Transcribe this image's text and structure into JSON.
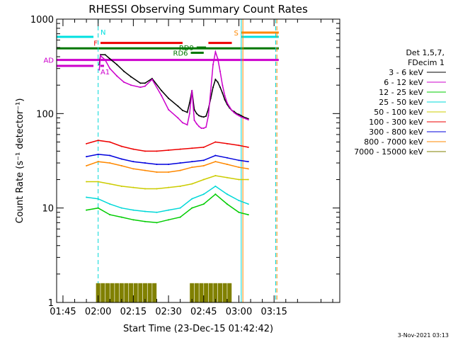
{
  "chart_data": {
    "type": "line",
    "title": "RHESSI Observing Summary Count Rates",
    "xlabel": "Start Time (23-Dec-15 01:42:42)",
    "ylabel": "Count Rate (s⁻¹ detector⁻¹)",
    "yscale": "log",
    "ylim": [
      1,
      1000
    ],
    "xlim_minutes": [
      -17.7,
      103
    ],
    "x_ticks": [
      "01:45",
      "02:00",
      "02:15",
      "02:30",
      "02:45",
      "03:00",
      "03:15"
    ],
    "x_tick_minutes": [
      -15,
      0,
      15,
      30,
      45,
      60,
      75
    ],
    "y_ticks": [
      "1",
      "10",
      "100",
      "1000"
    ],
    "y_tick_values": [
      1,
      10,
      100,
      1000
    ],
    "legend_header": [
      "Det 1,5,7,",
      "FDecim 1"
    ],
    "legend_placement": "right",
    "grid": false,
    "series": [
      {
        "name": "3 - 6 keV",
        "color": "#000000",
        "x": [
          0.5,
          1,
          3,
          5,
          8,
          11,
          14,
          18,
          20,
          23,
          27,
          30,
          34,
          36,
          38,
          39,
          40,
          41,
          42,
          43,
          44,
          45,
          46,
          47,
          48,
          49,
          50,
          51,
          52,
          53,
          54,
          55,
          56,
          57,
          58,
          59,
          60,
          61,
          62,
          63,
          64
        ],
        "y": [
          330,
          420,
          420,
          380,
          330,
          280,
          245,
          210,
          210,
          235,
          175,
          145,
          120,
          108,
          103,
          130,
          175,
          110,
          100,
          95,
          93,
          92,
          94,
          112,
          145,
          190,
          230,
          215,
          190,
          165,
          140,
          125,
          115,
          108,
          105,
          100,
          98,
          95,
          92,
          90,
          88
        ]
      },
      {
        "name": "6 - 12 keV",
        "color": "#cc00cc",
        "x": [
          0.5,
          1,
          3,
          5,
          8,
          11,
          14,
          18,
          20,
          23,
          27,
          30,
          34,
          36,
          38,
          39,
          40,
          41,
          42,
          43,
          44,
          45,
          46,
          47,
          48,
          49,
          50,
          51,
          52,
          53,
          54,
          55,
          56,
          57,
          58,
          59,
          60,
          61,
          62,
          63,
          64
        ],
        "y": [
          290,
          410,
          370,
          300,
          250,
          215,
          200,
          190,
          195,
          230,
          155,
          110,
          90,
          80,
          76,
          100,
          175,
          85,
          78,
          73,
          70,
          70,
          72,
          95,
          175,
          330,
          450,
          380,
          280,
          200,
          155,
          130,
          118,
          108,
          102,
          98,
          95,
          92,
          90,
          88,
          86
        ]
      },
      {
        "name": "12 - 25 keV",
        "color": "#00cc00",
        "x": [
          -5,
          0,
          5,
          10,
          15,
          20,
          25,
          30,
          35,
          40,
          45,
          50,
          55,
          60,
          64
        ],
        "y": [
          9.5,
          10,
          8.5,
          8,
          7.5,
          7.2,
          7.0,
          7.5,
          8.0,
          10,
          11,
          14,
          11,
          9,
          8.5
        ]
      },
      {
        "name": "25 - 50 keV",
        "color": "#00d8d8",
        "x": [
          -5,
          0,
          5,
          10,
          15,
          20,
          25,
          30,
          35,
          40,
          45,
          50,
          55,
          60,
          64
        ],
        "y": [
          13,
          12.5,
          11,
          10,
          9.5,
          9.2,
          9.0,
          9.5,
          10,
          12.5,
          14,
          17,
          14,
          12,
          11
        ]
      },
      {
        "name": "50 - 100 keV",
        "color": "#cccc00",
        "x": [
          -5,
          0,
          5,
          10,
          15,
          20,
          25,
          30,
          35,
          40,
          45,
          50,
          55,
          60,
          64
        ],
        "y": [
          19,
          19,
          18,
          17,
          16.5,
          16,
          16,
          16.5,
          17,
          18,
          20,
          22,
          21,
          20,
          20
        ]
      },
      {
        "name": "100 - 300 keV",
        "color": "#ee0000",
        "x": [
          -5,
          0,
          5,
          10,
          15,
          20,
          25,
          30,
          35,
          40,
          45,
          50,
          55,
          60,
          64
        ],
        "y": [
          48,
          52,
          50,
          45,
          42,
          40,
          40,
          41,
          42,
          43,
          44,
          50,
          48,
          46,
          44
        ]
      },
      {
        "name": "300 - 800 keV",
        "color": "#0000dd",
        "x": [
          -5,
          0,
          5,
          10,
          15,
          20,
          25,
          30,
          35,
          40,
          45,
          50,
          55,
          60,
          64
        ],
        "y": [
          35,
          37,
          36,
          33,
          31,
          30,
          29,
          29,
          30,
          31,
          32,
          36,
          34,
          32,
          31
        ]
      },
      {
        "name": "800 - 7000 keV",
        "color": "#ff8800",
        "x": [
          -5,
          0,
          5,
          10,
          15,
          20,
          25,
          30,
          35,
          40,
          45,
          50,
          55,
          60,
          64
        ],
        "y": [
          28,
          31,
          30,
          28,
          26,
          25,
          24,
          24,
          25,
          27,
          28,
          31,
          29,
          27,
          26
        ]
      },
      {
        "name": "7000 - 15000 keV",
        "color": "#808000",
        "x": [
          0,
          2,
          4,
          6,
          8,
          10,
          12,
          14,
          16,
          18,
          20,
          22,
          24,
          40,
          42,
          44,
          46,
          48,
          50,
          52,
          54,
          56
        ],
        "y": [
          1.6,
          1.6,
          1.6,
          1.6,
          1.6,
          1.6,
          1.6,
          1.6,
          1.6,
          1.6,
          1.6,
          1.6,
          1.6,
          1.6,
          1.6,
          1.6,
          1.6,
          1.6,
          1.6,
          1.6,
          1.6,
          1.6
        ]
      }
    ],
    "flags": [
      {
        "label": "N",
        "color": "#00e0e0",
        "value": 650,
        "segments": [
          [
            -17.7,
            -2
          ],
          [
            61,
            77
          ]
        ]
      },
      {
        "label": "F",
        "color": "#ee0000",
        "value": 560,
        "segments": [
          [
            1,
            36
          ],
          [
            47,
            57
          ]
        ]
      },
      {
        "label": "S",
        "color": "#ff8800",
        "value": 720,
        "segments": [
          [
            61,
            77
          ]
        ]
      },
      {
        "label": "",
        "color": "#007700",
        "value": 490,
        "segments": [
          [
            -17.7,
            77
          ]
        ]
      },
      {
        "label": "RD6",
        "color": "#007700",
        "value": 440,
        "segments": [
          [
            39.5,
            45
          ]
        ]
      },
      {
        "label": "RD9",
        "color": "#007700",
        "value": 500,
        "segments": [
          [
            42,
            46
          ]
        ]
      },
      {
        "label": "AD",
        "color": "#cc00cc",
        "value": 370,
        "segments": [
          [
            -17.7,
            77
          ]
        ]
      },
      {
        "label": "",
        "color": "#cc00cc",
        "value": 320,
        "segments": [
          [
            -17.7,
            -2
          ]
        ]
      },
      {
        "label": "A1",
        "color": "#cc00cc",
        "value": 320,
        "segments": [
          [
            1,
            2.5
          ]
        ]
      }
    ],
    "vlines": [
      {
        "x": 0,
        "color": "#00d8d8",
        "dashed": true
      },
      {
        "x": 61,
        "color": "#00d8d8",
        "dashed": false
      },
      {
        "x": 61.7,
        "color": "#ff8800",
        "dashed": false
      },
      {
        "x": 75.7,
        "color": "#00d8d8",
        "dashed": true
      },
      {
        "x": 76.2,
        "color": "#ff8800",
        "dashed": true
      }
    ]
  },
  "footer": {
    "date": "3-Nov-2021 03:13"
  }
}
